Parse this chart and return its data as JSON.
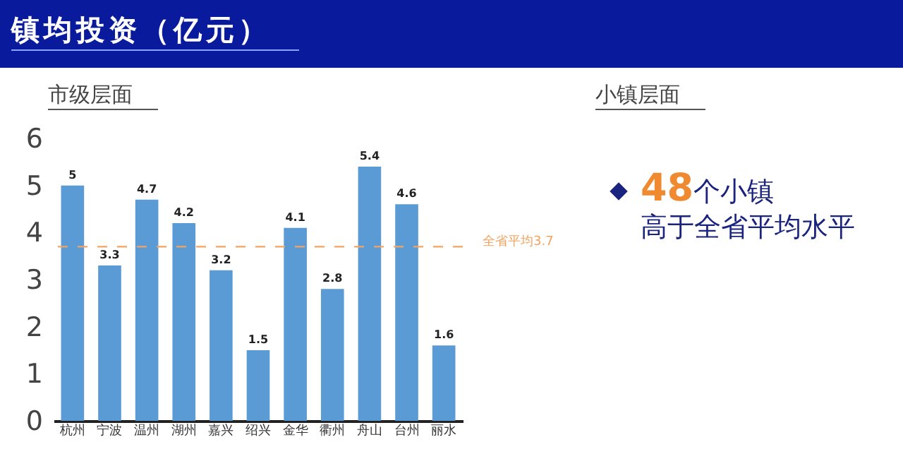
{
  "chart_data": {
    "type": "bar",
    "title": "镇均投资（亿元）",
    "subtitle": "市级层面",
    "categories": [
      "杭州",
      "宁波",
      "温州",
      "湖州",
      "嘉兴",
      "绍兴",
      "金华",
      "衢州",
      "舟山",
      "台州",
      "丽水"
    ],
    "values": [
      5,
      3.3,
      4.7,
      4.2,
      3.2,
      1.5,
      4.1,
      2.8,
      5.4,
      4.6,
      1.6
    ],
    "color": "#5b9bd5",
    "ylim": [
      0,
      6
    ],
    "yticks": [
      0,
      1,
      2,
      3,
      4,
      5,
      6
    ],
    "grid": false,
    "data_labels": true,
    "ref_lines": [
      {
        "axis": "y",
        "value": 3.7,
        "label": "全省平均3.7",
        "color": "#f4a460",
        "line_style": "dashed"
      }
    ],
    "annotations": [
      "小镇层面",
      "48个小镇",
      "高于全省平均水平"
    ]
  }
}
